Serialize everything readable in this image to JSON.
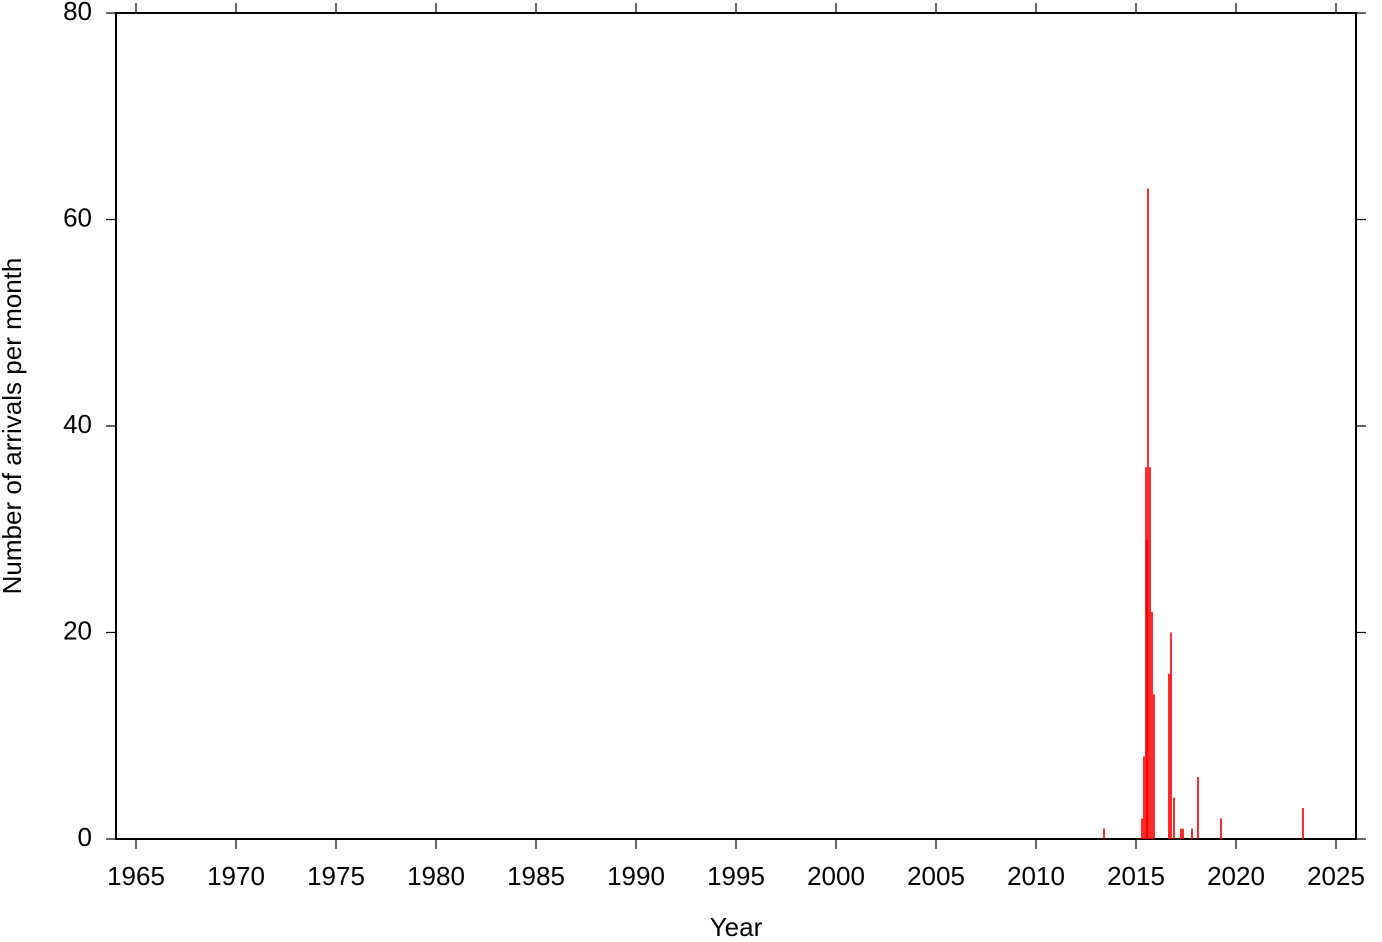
{
  "chart_data": {
    "type": "bar",
    "x_label": "Year",
    "y_label": "Number of arrivals per month",
    "x": [
      2013.4,
      2015.3,
      2015.4,
      2015.5,
      2015.55,
      2015.6,
      2015.7,
      2015.8,
      2015.9,
      2016.65,
      2016.75,
      2016.9,
      2017.25,
      2017.35,
      2017.8,
      2018.1,
      2019.25,
      2023.35
    ],
    "values": [
      1,
      2,
      8,
      36,
      29,
      63,
      36,
      22,
      14,
      16,
      20,
      4,
      1,
      1,
      1,
      6,
      2,
      3
    ],
    "color": "#ff0000",
    "xlim": [
      1964,
      2026
    ],
    "ylim": [
      0,
      80
    ],
    "xticks": [
      1965,
      1970,
      1975,
      1980,
      1985,
      1990,
      1995,
      2000,
      2005,
      2010,
      2015,
      2020,
      2025
    ],
    "yticks": [
      0,
      20,
      40,
      60,
      80
    ]
  }
}
